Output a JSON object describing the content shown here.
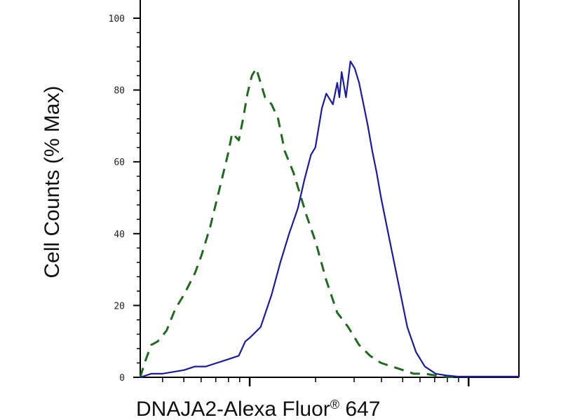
{
  "chart_data": {
    "type": "line",
    "xlabel": "DNAJA2-Alexa Fluor",
    "xlabel_superscript": "®",
    "xlabel_suffix": " 647",
    "ylabel": "Cell Counts (% Max)",
    "x_scale": "log",
    "xlim_decades": [
      0,
      1.73
    ],
    "ylim": [
      0,
      100
    ],
    "y_ticks": [
      0,
      20,
      40,
      60,
      80,
      100
    ],
    "x_major_tick_decades": [
      0.5,
      1.5
    ],
    "grid": false,
    "series": [
      {
        "style": "dashed",
        "color": "#1e6b1e",
        "x": [
          0.0,
          0.02,
          0.05,
          0.08,
          0.12,
          0.16,
          0.2,
          0.25,
          0.28,
          0.32,
          0.36,
          0.4,
          0.42,
          0.45,
          0.47,
          0.49,
          0.51,
          0.53,
          0.55,
          0.57,
          0.6,
          0.63,
          0.66,
          0.7,
          0.73,
          0.76,
          0.8,
          0.85,
          0.9,
          0.95,
          1.0,
          1.05,
          1.1,
          1.15,
          1.2,
          1.25,
          1.3,
          1.35,
          1.4,
          1.45
        ],
        "y": [
          0,
          4,
          9,
          10,
          13,
          19,
          23,
          29,
          34,
          42,
          52,
          62,
          68,
          66,
          72,
          79,
          84,
          86,
          82,
          78,
          76,
          72,
          63,
          57,
          51,
          45,
          38,
          27,
          18,
          14,
          9,
          6,
          4,
          3,
          2,
          1,
          1,
          0.5,
          0.2,
          0
        ]
      },
      {
        "style": "solid",
        "color": "#1a1aa8",
        "x": [
          0.0,
          0.05,
          0.1,
          0.2,
          0.25,
          0.3,
          0.35,
          0.4,
          0.45,
          0.48,
          0.5,
          0.55,
          0.6,
          0.64,
          0.68,
          0.72,
          0.75,
          0.78,
          0.8,
          0.83,
          0.85,
          0.88,
          0.9,
          0.91,
          0.92,
          0.94,
          0.96,
          0.98,
          1.0,
          1.02,
          1.04,
          1.06,
          1.08,
          1.1,
          1.14,
          1.18,
          1.22,
          1.26,
          1.3,
          1.35,
          1.4,
          1.45,
          1.5,
          1.55,
          1.6,
          1.65,
          1.73
        ],
        "y": [
          0,
          1,
          1,
          2,
          3,
          3,
          4,
          5,
          6,
          10,
          11,
          14,
          23,
          32,
          40,
          47,
          55,
          62,
          64,
          75,
          79,
          76,
          82,
          78,
          85,
          78,
          88,
          86,
          82,
          76,
          70,
          63,
          57,
          50,
          38,
          26,
          14,
          7,
          3,
          1,
          0.5,
          0.2,
          0.2,
          0.2,
          0.2,
          0.2,
          0.2
        ]
      }
    ]
  }
}
